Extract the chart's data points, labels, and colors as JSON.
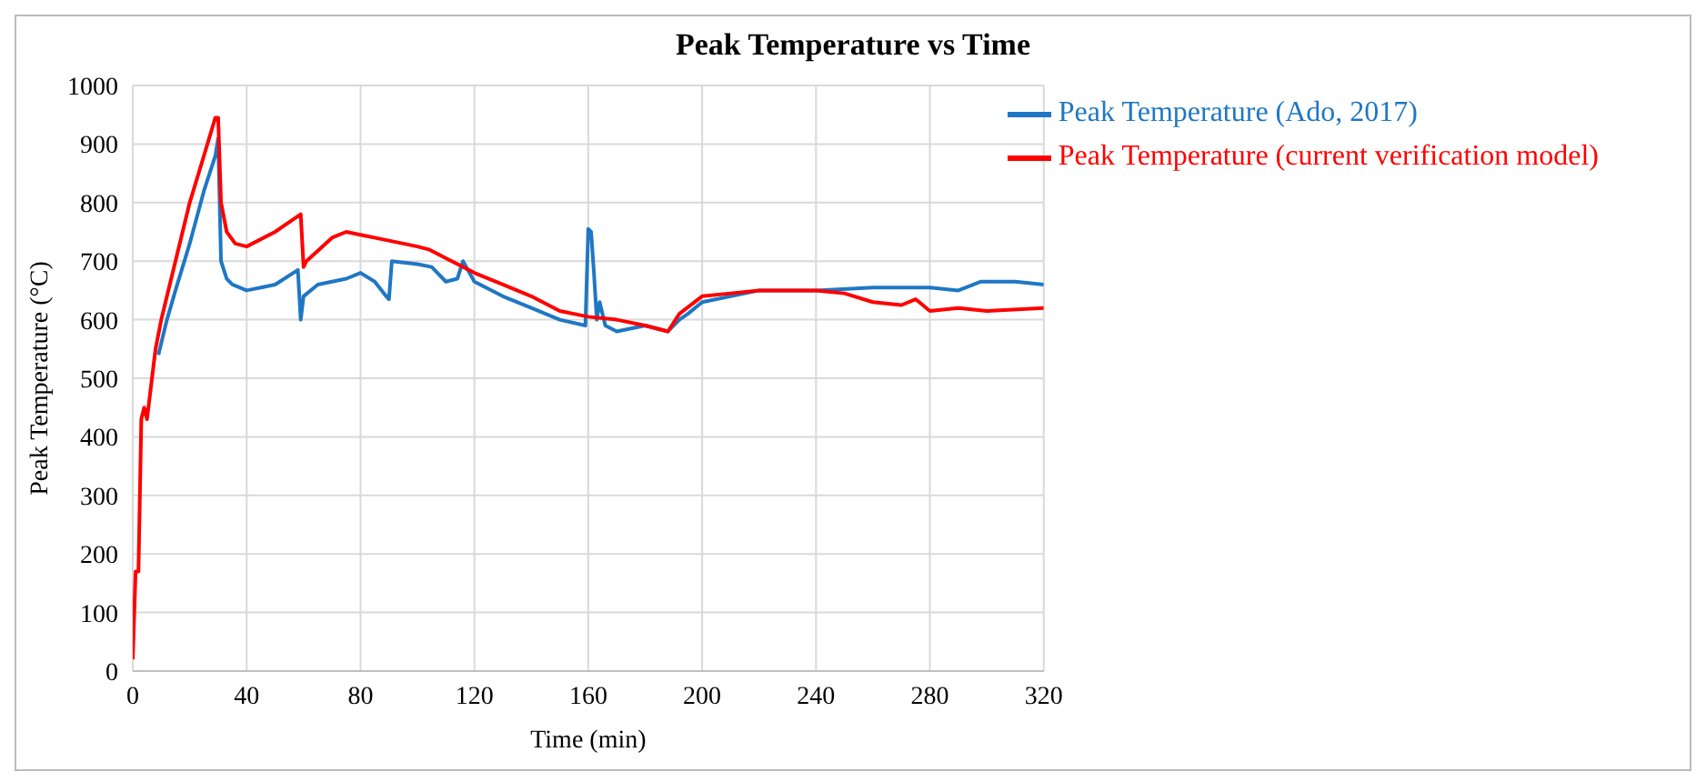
{
  "chart_data": {
    "type": "line",
    "title": "Peak Temperature vs Time",
    "xlabel": "Time (min)",
    "ylabel": "Peak Temperature (°C)",
    "xlim": [
      0,
      320
    ],
    "xticks": [
      0,
      40,
      80,
      120,
      160,
      200,
      240,
      280,
      320
    ],
    "ylim": [
      0,
      1000
    ],
    "yticks": [
      0,
      100,
      200,
      300,
      400,
      500,
      600,
      700,
      800,
      900,
      1000
    ],
    "grid": true,
    "legend": "top right",
    "marker": "none",
    "line_style": "solid",
    "series": [
      {
        "name": "Peak Temperature (Ado, 2017)",
        "color": "#1f77c4",
        "x": [
          9,
          12,
          15,
          20,
          25,
          29,
          30,
          31,
          33,
          35,
          40,
          45,
          50,
          58,
          59,
          60,
          65,
          75,
          80,
          85,
          89,
          90,
          91,
          100,
          105,
          110,
          114,
          116,
          120,
          130,
          140,
          150,
          159,
          160,
          161,
          162,
          163,
          164,
          166,
          170,
          180,
          188,
          192,
          195,
          200,
          210,
          220,
          240,
          260,
          280,
          290,
          298,
          310,
          320
        ],
        "values": [
          540,
          600,
          650,
          730,
          820,
          880,
          910,
          700,
          670,
          660,
          650,
          655,
          660,
          685,
          600,
          640,
          660,
          670,
          680,
          665,
          640,
          635,
          700,
          695,
          690,
          665,
          670,
          700,
          665,
          640,
          620,
          600,
          590,
          755,
          750,
          680,
          600,
          630,
          590,
          580,
          590,
          580,
          600,
          610,
          630,
          640,
          650,
          650,
          655,
          655,
          650,
          665,
          665,
          660
        ]
      },
      {
        "name": "Peak Temperature (current verification model)",
        "color": "#ff0000",
        "x": [
          0,
          1,
          2,
          3,
          4,
          5,
          6,
          8,
          10,
          11,
          15,
          20,
          25,
          29,
          30,
          31,
          33,
          36,
          40,
          50,
          59,
          60,
          61,
          70,
          75,
          80,
          90,
          100,
          104,
          110,
          120,
          130,
          140,
          150,
          160,
          170,
          180,
          188,
          192,
          200,
          210,
          220,
          240,
          250,
          260,
          270,
          275,
          280,
          290,
          300,
          320
        ],
        "values": [
          20,
          170,
          170,
          430,
          450,
          430,
          470,
          550,
          600,
          620,
          700,
          800,
          880,
          945,
          945,
          800,
          750,
          730,
          725,
          750,
          780,
          690,
          700,
          740,
          750,
          745,
          735,
          725,
          720,
          705,
          680,
          660,
          640,
          615,
          605,
          600,
          590,
          580,
          610,
          640,
          645,
          650,
          650,
          645,
          630,
          625,
          635,
          615,
          620,
          615,
          620
        ]
      }
    ]
  }
}
